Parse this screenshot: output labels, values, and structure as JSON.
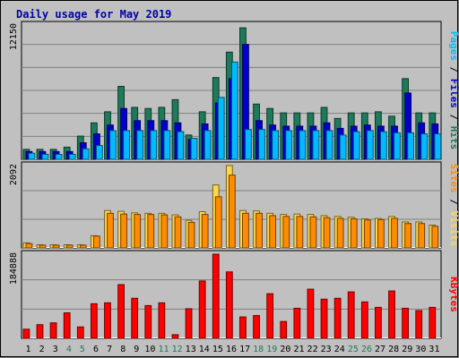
{
  "chart_data": {
    "type": "bar",
    "title": "Daily usage for May 2019",
    "categories": [
      "1",
      "2",
      "3",
      "4",
      "5",
      "6",
      "7",
      "8",
      "9",
      "10",
      "11",
      "12",
      "13",
      "14",
      "15",
      "16",
      "17",
      "18",
      "19",
      "20",
      "21",
      "22",
      "23",
      "24",
      "25",
      "26",
      "27",
      "28",
      "29",
      "30",
      "31"
    ],
    "weekend_days": [
      "4",
      "5",
      "11",
      "12",
      "18",
      "19",
      "25",
      "26"
    ],
    "panels": [
      {
        "id": "hits",
        "max_label": "12150",
        "ylim": [
          0,
          12150
        ],
        "series": [
          {
            "name": "Hits",
            "color": "#1d7a5a",
            "values": [
              900,
              900,
              900,
              1100,
              2100,
              3300,
              4300,
              6600,
              4700,
              4600,
              4700,
              5400,
              2200,
              4300,
              7400,
              9700,
              11900,
              5000,
              4600,
              4200,
              4200,
              4200,
              4700,
              3700,
              4200,
              4200,
              4300,
              3900,
              7300,
              4200,
              4200
            ]
          },
          {
            "name": "Files",
            "color": "#0000cc",
            "values": [
              700,
              700,
              700,
              700,
              1500,
              2300,
              3100,
              4600,
              3500,
              3500,
              3500,
              3300,
              1800,
              3200,
              5100,
              7300,
              10400,
              3500,
              3100,
              3000,
              3000,
              3000,
              3300,
              2800,
              3000,
              3100,
              3000,
              3000,
              6000,
              3300,
              3200
            ]
          },
          {
            "name": "Pages",
            "color": "#00bbff",
            "values": [
              550,
              450,
              450,
              450,
              950,
              1250,
              2600,
              2600,
              2600,
              2600,
              2600,
              2500,
              1900,
              2600,
              5600,
              8800,
              2700,
              2700,
              2600,
              2600,
              2600,
              2600,
              2600,
              2200,
              2500,
              2600,
              2500,
              2400,
              2400,
              2300,
              2300
            ]
          }
        ],
        "axis_labels": [
          "Pages",
          "Files",
          "Hits"
        ]
      },
      {
        "id": "visits",
        "max_label": "2092",
        "ylim": [
          0,
          2092
        ],
        "series": [
          {
            "name": "Visits",
            "color": "#ffd84a",
            "values": [
              130,
              80,
              80,
              80,
              80,
              310,
              950,
              930,
              890,
              880,
              880,
              840,
              700,
              920,
              1600,
              2092,
              950,
              940,
              880,
              850,
              860,
              850,
              820,
              800,
              780,
              740,
              750,
              800,
              660,
              660,
              580
            ]
          },
          {
            "name": "Sites",
            "color": "#ff8c00",
            "values": [
              110,
              70,
              70,
              70,
              70,
              300,
              880,
              860,
              850,
              850,
              840,
              790,
              650,
              850,
              1300,
              1850,
              880,
              880,
              820,
              800,
              800,
              790,
              770,
              750,
              740,
              710,
              720,
              750,
              620,
              620,
              550
            ]
          }
        ],
        "axis_labels": [
          "Sites",
          "Visits"
        ]
      },
      {
        "id": "kbytes",
        "max_label": "184888",
        "ylim": [
          0,
          184888
        ],
        "series": [
          {
            "name": "KBytes",
            "color": "#ff0000",
            "values": [
              20000,
              30000,
              34000,
              56000,
              25000,
              76000,
              78000,
              118000,
              88000,
              72000,
              78000,
              8000,
              65000,
              126000,
              184888,
              146000,
              47000,
              50000,
              98000,
              37000,
              66000,
              108000,
              86000,
              88000,
              102000,
              80000,
              68000,
              104000,
              66000,
              61000,
              68000
            ]
          }
        ],
        "axis_labels": [
          "KBytes"
        ]
      }
    ],
    "grid": true,
    "legend": "right-vertical"
  }
}
